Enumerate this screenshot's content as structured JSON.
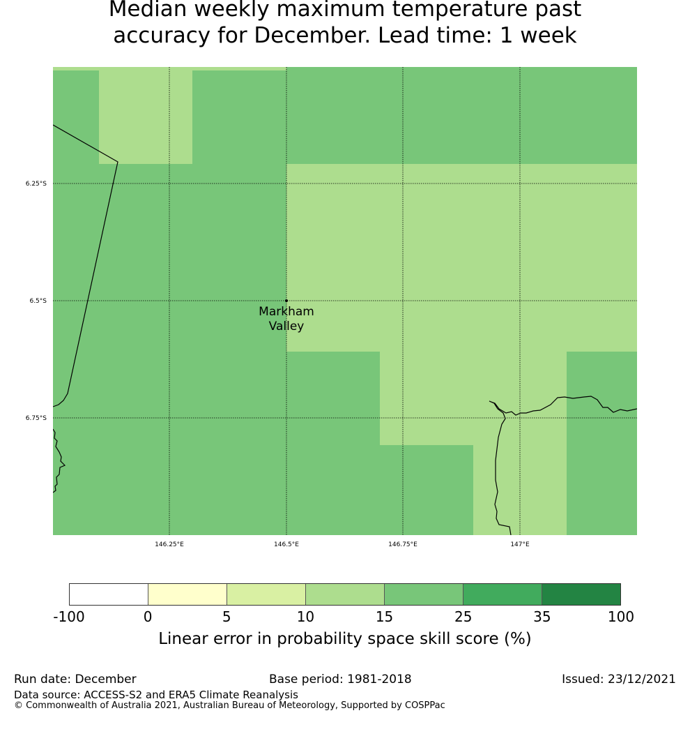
{
  "title_lines": [
    "Median weekly maximum temperature past",
    "accuracy for December. Lead time: 1 week"
  ],
  "map": {
    "lat_labels": [
      "6.25°S",
      "6.5°S",
      "6.75°S"
    ],
    "lon_labels": [
      "146.25°E",
      "146.5°E",
      "146.75°E",
      "147°E"
    ],
    "location": {
      "name_line1": "Markham",
      "name_line2": "Valley"
    },
    "colors": {
      "score_15_25": "#78c679",
      "score_10_15": "#addd8e",
      "boundary": "#000000"
    }
  },
  "legend": {
    "colors": [
      "#ffffff",
      "#ffffcc",
      "#d9f0a3",
      "#addd8e",
      "#78c679",
      "#41ab5d",
      "#238443"
    ],
    "ticks": [
      "-100",
      "0",
      "5",
      "10",
      "15",
      "25",
      "35",
      "100"
    ],
    "label": "Linear error in probability space skill score (%)"
  },
  "footer": {
    "run_date": "Run date: December",
    "base_period": "Base period: 1981-2018",
    "issued": "Issued: 23/12/2021",
    "data_source": "Data source: ACCESS-S2 and ERA5 Climate Reanalysis",
    "copyright": "© Commonwealth of Australia 2021, Australian Bureau of Meteorology, Supported by COSPPac"
  }
}
